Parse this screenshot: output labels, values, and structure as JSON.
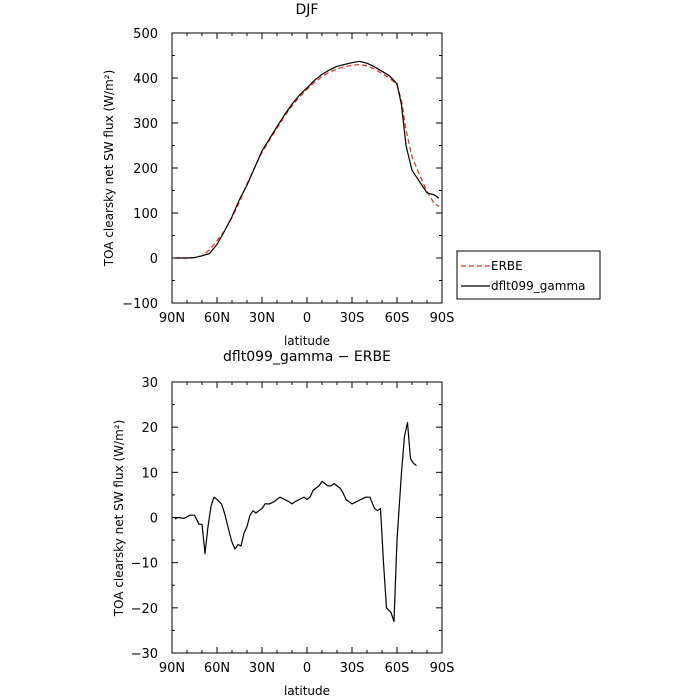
{
  "chart_data": [
    {
      "type": "line",
      "title": "DJF",
      "xlabel": "latitude",
      "ylabel": "TOA clearsky net SW flux (W/m²)",
      "xlim": [
        90,
        -90
      ],
      "ylim": [
        -100,
        500
      ],
      "x_ticks": [
        90,
        60,
        30,
        0,
        -30,
        -60,
        -90
      ],
      "x_tick_labels": [
        "90N",
        "60N",
        "30N",
        "0",
        "30S",
        "60S",
        "90S"
      ],
      "y_ticks": [
        -100,
        0,
        100,
        200,
        300,
        400,
        500
      ],
      "y_tick_labels": [
        "−100",
        "0",
        "100",
        "200",
        "300",
        "400",
        "500"
      ],
      "legend": "right-outside",
      "series": [
        {
          "name": "ERBE",
          "color": "#e8291f",
          "dash": "dashed",
          "points": [
            [
              88,
              0
            ],
            [
              80,
              0
            ],
            [
              75,
              1
            ],
            [
              70,
              5
            ],
            [
              65,
              18
            ],
            [
              60,
              38
            ],
            [
              55,
              60
            ],
            [
              50,
              90
            ],
            [
              45,
              125
            ],
            [
              40,
              165
            ],
            [
              35,
              200
            ],
            [
              30,
              235
            ],
            [
              25,
              262
            ],
            [
              20,
              288
            ],
            [
              15,
              315
            ],
            [
              10,
              338
            ],
            [
              5,
              358
            ],
            [
              0,
              375
            ],
            [
              -5,
              390
            ],
            [
              -10,
              403
            ],
            [
              -15,
              413
            ],
            [
              -20,
              420
            ],
            [
              -25,
              425
            ],
            [
              -30,
              428
            ],
            [
              -35,
              430
            ],
            [
              -40,
              427
            ],
            [
              -45,
              420
            ],
            [
              -50,
              410
            ],
            [
              -55,
              400
            ],
            [
              -60,
              385
            ],
            [
              -63,
              350
            ],
            [
              -66,
              285
            ],
            [
              -70,
              225
            ],
            [
              -75,
              185
            ],
            [
              -80,
              148
            ],
            [
              -85,
              120
            ],
            [
              -88,
              115
            ]
          ]
        },
        {
          "name": "dflt099_gamma",
          "color": "#000000",
          "dash": "solid",
          "points": [
            [
              88,
              0
            ],
            [
              80,
              0
            ],
            [
              75,
              1
            ],
            [
              70,
              5
            ],
            [
              65,
              10
            ],
            [
              60,
              30
            ],
            [
              55,
              60
            ],
            [
              50,
              92
            ],
            [
              45,
              130
            ],
            [
              40,
              162
            ],
            [
              35,
              200
            ],
            [
              30,
              238
            ],
            [
              25,
              265
            ],
            [
              20,
              292
            ],
            [
              15,
              318
            ],
            [
              10,
              342
            ],
            [
              5,
              362
            ],
            [
              0,
              378
            ],
            [
              -5,
              395
            ],
            [
              -10,
              408
            ],
            [
              -15,
              418
            ],
            [
              -20,
              426
            ],
            [
              -25,
              430
            ],
            [
              -30,
              434
            ],
            [
              -35,
              437
            ],
            [
              -40,
              433
            ],
            [
              -45,
              425
            ],
            [
              -50,
              415
            ],
            [
              -55,
              405
            ],
            [
              -60,
              387
            ],
            [
              -63,
              340
            ],
            [
              -66,
              250
            ],
            [
              -70,
              195
            ],
            [
              -75,
              170
            ],
            [
              -80,
              145
            ],
            [
              -85,
              140
            ],
            [
              -88,
              133
            ]
          ]
        }
      ]
    },
    {
      "type": "line",
      "title": "dflt099_gamma − ERBE",
      "xlabel": "latitude",
      "ylabel": "TOA clearsky net SW flux (W/m²)",
      "xlim": [
        90,
        -90
      ],
      "ylim": [
        -30,
        30
      ],
      "x_ticks": [
        90,
        60,
        30,
        0,
        -30,
        -60,
        -90
      ],
      "x_tick_labels": [
        "90N",
        "60N",
        "30N",
        "0",
        "30S",
        "60S",
        "90S"
      ],
      "y_ticks": [
        -30,
        -20,
        -10,
        0,
        10,
        20,
        30
      ],
      "y_tick_labels": [
        "−30",
        "−20",
        "−10",
        "0",
        "10",
        "20",
        "30"
      ],
      "series": [
        {
          "name": "",
          "color": "#000000",
          "dash": "solid",
          "points": [
            [
              88,
              -0.3
            ],
            [
              86,
              0
            ],
            [
              82,
              -0.2
            ],
            [
              78,
              0.5
            ],
            [
              75,
              0.5
            ],
            [
              72,
              -1.5
            ],
            [
              70,
              -1.5
            ],
            [
              68,
              -8
            ],
            [
              66,
              -2
            ],
            [
              64,
              2.5
            ],
            [
              62,
              4.5
            ],
            [
              60,
              4
            ],
            [
              57,
              3
            ],
            [
              55,
              1
            ],
            [
              52,
              -3
            ],
            [
              50,
              -5.5
            ],
            [
              48,
              -7
            ],
            [
              46,
              -6
            ],
            [
              44,
              -6.3
            ],
            [
              42,
              -3.5
            ],
            [
              40,
              -2
            ],
            [
              38,
              0.5
            ],
            [
              36,
              1.5
            ],
            [
              34,
              1
            ],
            [
              32,
              1.5
            ],
            [
              30,
              2
            ],
            [
              28,
              3
            ],
            [
              25,
              3
            ],
            [
              22,
              3.5
            ],
            [
              20,
              4
            ],
            [
              18,
              4.5
            ],
            [
              15,
              4
            ],
            [
              12,
              3.5
            ],
            [
              10,
              3
            ],
            [
              8,
              3.5
            ],
            [
              5,
              4
            ],
            [
              2,
              4.5
            ],
            [
              0,
              4
            ],
            [
              -2,
              4.5
            ],
            [
              -4,
              6
            ],
            [
              -6,
              6.5
            ],
            [
              -8,
              7
            ],
            [
              -10,
              8
            ],
            [
              -12,
              7.5
            ],
            [
              -14,
              7
            ],
            [
              -16,
              7
            ],
            [
              -18,
              7.5
            ],
            [
              -20,
              7
            ],
            [
              -22,
              6.5
            ],
            [
              -24,
              5.5
            ],
            [
              -26,
              4
            ],
            [
              -28,
              3.5
            ],
            [
              -30,
              3
            ],
            [
              -33,
              3.5
            ],
            [
              -36,
              4
            ],
            [
              -39,
              4.5
            ],
            [
              -42,
              4.5
            ],
            [
              -45,
              2
            ],
            [
              -47,
              1.5
            ],
            [
              -49,
              2
            ],
            [
              -51,
              -10
            ],
            [
              -53,
              -20
            ],
            [
              -56,
              -21
            ],
            [
              -58,
              -23
            ],
            [
              -60,
              -5
            ],
            [
              -63,
              10
            ],
            [
              -65,
              18
            ],
            [
              -67,
              21
            ],
            [
              -69,
              13
            ],
            [
              -71,
              12
            ],
            [
              -73,
              11.5
            ]
          ]
        }
      ]
    }
  ]
}
